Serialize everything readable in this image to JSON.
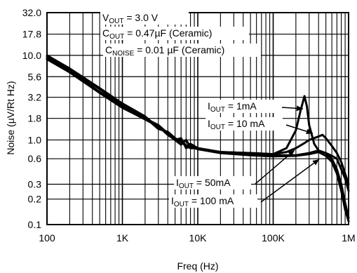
{
  "chart_data": {
    "type": "line",
    "x_scale": "log",
    "y_scale": "log",
    "xlim": [
      100,
      1000000
    ],
    "ylim": [
      0.1,
      32.0
    ],
    "xlabel": "Freq (Hz)",
    "ylabel": "Noise (µV/Rt Hz)",
    "x_ticks": [
      {
        "value": 100,
        "label": "100"
      },
      {
        "value": 1000,
        "label": "1K"
      },
      {
        "value": 10000,
        "label": "10K"
      },
      {
        "value": 100000,
        "label": "100K"
      },
      {
        "value": 1000000,
        "label": "1M"
      }
    ],
    "y_ticks": [
      {
        "value": 0.1,
        "label": "0.1"
      },
      {
        "value": 0.2,
        "label": "0.2"
      },
      {
        "value": 0.3,
        "label": "0.3"
      },
      {
        "value": 0.6,
        "label": "0.6"
      },
      {
        "value": 1.0,
        "label": "1.0"
      },
      {
        "value": 1.8,
        "label": "1.8"
      },
      {
        "value": 3.2,
        "label": "3.2"
      },
      {
        "value": 5.6,
        "label": "5.6"
      },
      {
        "value": 10.0,
        "label": "10.0"
      },
      {
        "value": 17.8,
        "label": "17.8"
      },
      {
        "value": 32.0,
        "label": "32.0"
      }
    ],
    "grid": true,
    "conditions": [
      {
        "text": "V",
        "sub": "OUT",
        "rest": " = 3.0 V"
      },
      {
        "text": "C",
        "sub": "OUT",
        "rest": " = 0.47µF (Ceramic)"
      },
      {
        "text": "C",
        "sub": "NOISE",
        "rest": " = 0.01 µF (Ceramic)"
      }
    ],
    "series": [
      {
        "name_main": "I",
        "name_sub": "OUT",
        "name_rest": " = 1mA",
        "x": [
          100,
          200,
          500,
          1000,
          1500,
          2000,
          3000,
          4000,
          5000,
          6000,
          7000,
          8000,
          10000,
          20000,
          50000,
          100000,
          150000,
          200000,
          230000,
          260000,
          280000,
          300000,
          350000,
          400000,
          500000,
          600000,
          700000,
          800000,
          900000,
          1000000
        ],
        "y": [
          10.0,
          7.0,
          4.1,
          2.7,
          2.2,
          1.9,
          1.4,
          1.2,
          1.0,
          0.88,
          1.0,
          0.82,
          0.78,
          0.72,
          0.7,
          0.68,
          0.8,
          1.3,
          2.2,
          3.3,
          2.5,
          1.5,
          0.9,
          0.75,
          0.7,
          0.65,
          0.6,
          0.45,
          0.35,
          0.25
        ]
      },
      {
        "name_main": "I",
        "name_sub": "OUT",
        "name_rest": " = 10 mA",
        "x": [
          100,
          200,
          500,
          1000,
          1500,
          2000,
          3000,
          4000,
          5000,
          6000,
          7000,
          8000,
          10000,
          20000,
          50000,
          100000,
          150000,
          200000,
          250000,
          300000,
          400000,
          450000,
          500000,
          600000,
          700000,
          800000,
          900000,
          1000000
        ],
        "y": [
          9.6,
          6.8,
          4.0,
          2.6,
          2.1,
          1.85,
          1.35,
          1.25,
          1.05,
          0.95,
          0.85,
          0.9,
          0.8,
          0.72,
          0.7,
          0.68,
          0.72,
          0.8,
          0.9,
          1.0,
          1.1,
          1.15,
          1.05,
          0.85,
          0.7,
          0.55,
          0.4,
          0.3
        ]
      },
      {
        "name_main": "I",
        "name_sub": "OUT",
        "name_rest": " = 50mA",
        "x": [
          100,
          200,
          500,
          1000,
          1500,
          2000,
          3000,
          4000,
          5000,
          6000,
          7000,
          8000,
          10000,
          20000,
          50000,
          100000,
          200000,
          300000,
          400000,
          500000,
          600000,
          700000,
          800000,
          900000,
          1000000
        ],
        "y": [
          9.2,
          6.5,
          3.7,
          2.5,
          2.1,
          1.8,
          1.5,
          1.2,
          1.0,
          1.0,
          0.85,
          0.8,
          0.8,
          0.72,
          0.68,
          0.66,
          0.66,
          0.7,
          0.75,
          0.7,
          0.6,
          0.45,
          0.3,
          0.18,
          0.12
        ]
      },
      {
        "name_main": "I",
        "name_sub": "OUT",
        "name_rest": " = 100 mA",
        "x": [
          100,
          200,
          500,
          1000,
          1500,
          2000,
          3000,
          4000,
          5000,
          6000,
          7000,
          8000,
          10000,
          20000,
          50000,
          100000,
          200000,
          300000,
          400000,
          500000,
          600000,
          700000,
          800000,
          900000,
          1000000
        ],
        "y": [
          9.0,
          6.3,
          3.6,
          2.4,
          2.0,
          1.75,
          1.45,
          1.15,
          1.0,
          1.05,
          0.8,
          0.85,
          0.78,
          0.7,
          0.66,
          0.64,
          0.65,
          0.68,
          0.72,
          0.65,
          0.55,
          0.4,
          0.25,
          0.15,
          0.11
        ]
      }
    ]
  }
}
